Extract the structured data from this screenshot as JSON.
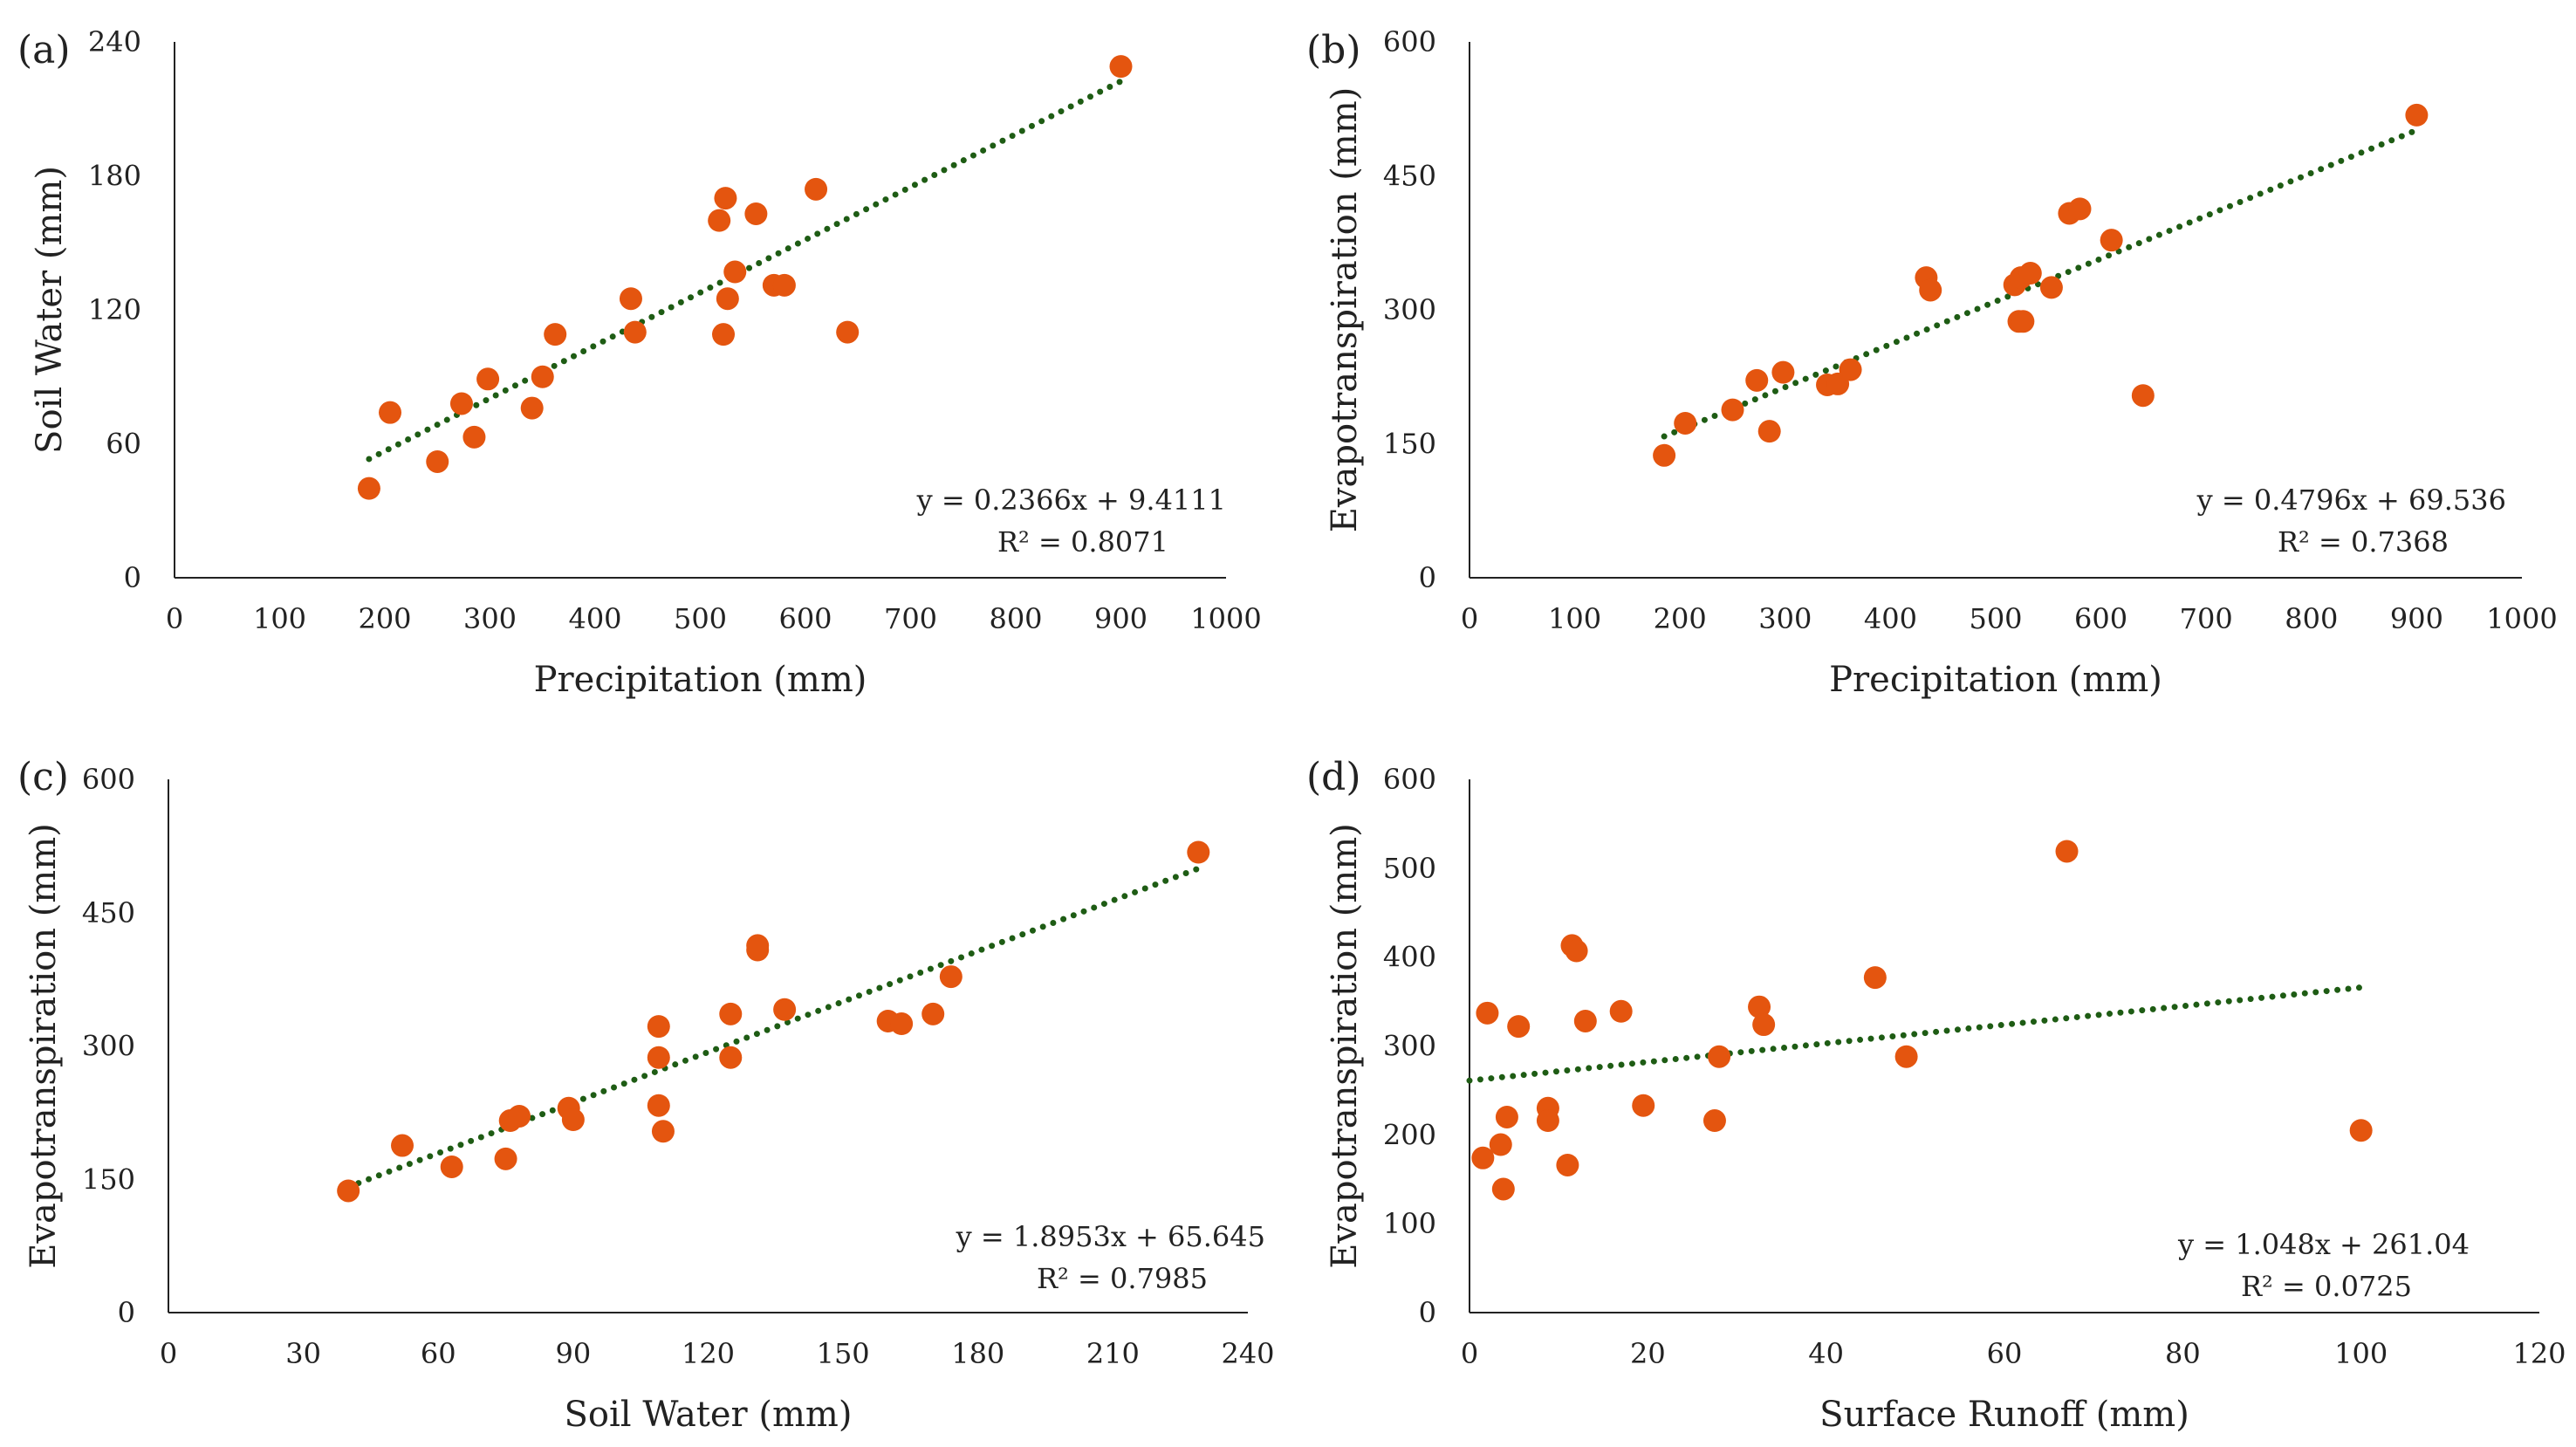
{
  "colors": {
    "point": "#e4550f",
    "trendline": "#1e5c14",
    "axis": "#222222",
    "text": "#222222"
  },
  "chart_data": [
    {
      "panel": "(a)",
      "type": "scatter",
      "xlabel": "Precipitation (mm)",
      "ylabel": "Soil Water (mm)",
      "xlim": [
        0,
        1000
      ],
      "ylim": [
        0,
        240
      ],
      "xticks": [
        0,
        100,
        200,
        300,
        400,
        500,
        600,
        700,
        800,
        900,
        1000
      ],
      "yticks": [
        0,
        60,
        120,
        180,
        240
      ],
      "points": [
        [
          185,
          40
        ],
        [
          205,
          74
        ],
        [
          250,
          52
        ],
        [
          273,
          78
        ],
        [
          285,
          63
        ],
        [
          298,
          89
        ],
        [
          340,
          76
        ],
        [
          350,
          90
        ],
        [
          362,
          109
        ],
        [
          434,
          125
        ],
        [
          438,
          110
        ],
        [
          518,
          160
        ],
        [
          522,
          109
        ],
        [
          524,
          170
        ],
        [
          526,
          125
        ],
        [
          533,
          137
        ],
        [
          553,
          163
        ],
        [
          570,
          131
        ],
        [
          580,
          131
        ],
        [
          610,
          174
        ],
        [
          640,
          110
        ],
        [
          900,
          229
        ]
      ],
      "trendline": {
        "slope": 0.2366,
        "intercept": 9.4111,
        "x_range": [
          185,
          900
        ]
      },
      "equation": "y = 0.2366x + 9.4111",
      "r2": "R² = 0.8071"
    },
    {
      "panel": "(b)",
      "type": "scatter",
      "xlabel": "Precipitation (mm)",
      "ylabel": "Evapotranspiration (mm)",
      "xlim": [
        0,
        1000
      ],
      "ylim": [
        0,
        600
      ],
      "xticks": [
        0,
        100,
        200,
        300,
        400,
        500,
        600,
        700,
        800,
        900,
        1000
      ],
      "yticks": [
        0,
        150,
        300,
        450,
        600
      ],
      "points": [
        [
          185,
          137
        ],
        [
          205,
          173
        ],
        [
          250,
          188
        ],
        [
          273,
          221
        ],
        [
          285,
          164
        ],
        [
          298,
          230
        ],
        [
          340,
          216
        ],
        [
          350,
          217
        ],
        [
          362,
          233
        ],
        [
          434,
          336
        ],
        [
          438,
          322
        ],
        [
          518,
          328
        ],
        [
          522,
          287
        ],
        [
          524,
          336
        ],
        [
          526,
          287
        ],
        [
          533,
          341
        ],
        [
          553,
          325
        ],
        [
          570,
          408
        ],
        [
          580,
          413
        ],
        [
          610,
          378
        ],
        [
          640,
          204
        ],
        [
          900,
          518
        ]
      ],
      "trendline": {
        "slope": 0.4796,
        "intercept": 69.536,
        "x_range": [
          185,
          900
        ]
      },
      "equation": "y = 0.4796x + 69.536",
      "r2": "R² = 0.7368"
    },
    {
      "panel": "(c)",
      "type": "scatter",
      "xlabel": "Soil Water (mm)",
      "ylabel": "Evapotranspiration (mm)",
      "xlim": [
        0,
        240
      ],
      "ylim": [
        0,
        600
      ],
      "xticks": [
        0,
        30,
        60,
        90,
        120,
        150,
        180,
        210,
        240
      ],
      "yticks": [
        0,
        150,
        300,
        450,
        600
      ],
      "points": [
        [
          40,
          137
        ],
        [
          52,
          188
        ],
        [
          63,
          164
        ],
        [
          75,
          173
        ],
        [
          76,
          216
        ],
        [
          78,
          221
        ],
        [
          89,
          230
        ],
        [
          90,
          217
        ],
        [
          109,
          322
        ],
        [
          109,
          287
        ],
        [
          109,
          233
        ],
        [
          110,
          204
        ],
        [
          125,
          336
        ],
        [
          125,
          287
        ],
        [
          131,
          413
        ],
        [
          131,
          408
        ],
        [
          137,
          341
        ],
        [
          160,
          328
        ],
        [
          163,
          325
        ],
        [
          170,
          336
        ],
        [
          174,
          378
        ],
        [
          229,
          518
        ]
      ],
      "trendline": {
        "slope": 1.8953,
        "intercept": 65.645,
        "x_range": [
          40,
          229
        ]
      },
      "equation": "y = 1.8953x + 65.645",
      "r2": "R² = 0.7985"
    },
    {
      "panel": "(d)",
      "type": "scatter",
      "xlabel": "Surface Runoff (mm)",
      "ylabel": "Evapotranspiration (mm)",
      "xlim": [
        0,
        120
      ],
      "ylim": [
        0,
        600
      ],
      "xticks": [
        0,
        20,
        40,
        60,
        80,
        100,
        120
      ],
      "yticks": [
        0,
        100,
        200,
        300,
        400,
        500,
        600
      ],
      "points": [
        [
          1.5,
          174
        ],
        [
          2,
          337
        ],
        [
          3.5,
          189
        ],
        [
          3.8,
          139
        ],
        [
          4.2,
          220
        ],
        [
          5.5,
          322
        ],
        [
          8.8,
          230
        ],
        [
          8.8,
          216
        ],
        [
          11,
          166
        ],
        [
          11.5,
          413
        ],
        [
          12,
          407
        ],
        [
          13,
          328
        ],
        [
          17,
          339
        ],
        [
          19.5,
          233
        ],
        [
          27.5,
          216
        ],
        [
          28,
          288
        ],
        [
          32.5,
          344
        ],
        [
          33,
          324
        ],
        [
          45.5,
          377
        ],
        [
          49,
          288
        ],
        [
          67,
          519
        ],
        [
          100,
          205
        ]
      ],
      "trendline": {
        "slope": 1.048,
        "intercept": 261.04,
        "x_range": [
          0,
          100
        ]
      },
      "equation": "y = 1.048x + 261.04",
      "r2": "R² = 0.0725"
    }
  ]
}
